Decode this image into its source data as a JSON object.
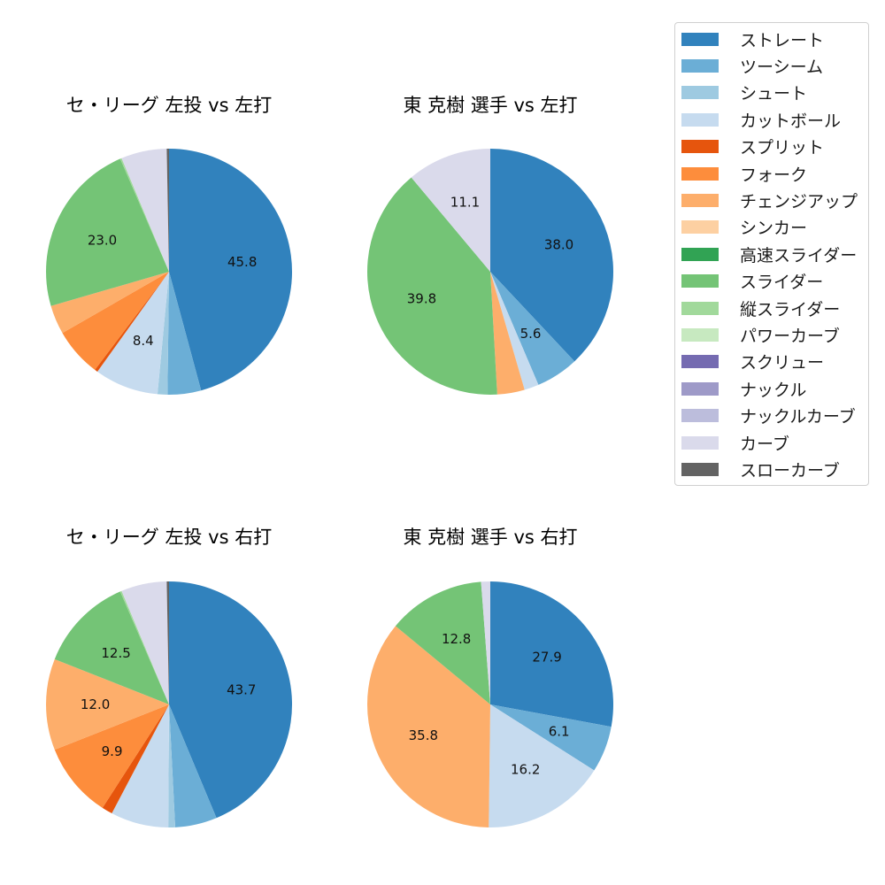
{
  "legend": {
    "items": [
      {
        "label": "ストレート",
        "color": "#3182bd"
      },
      {
        "label": "ツーシーム",
        "color": "#6baed6"
      },
      {
        "label": "シュート",
        "color": "#9ecae1"
      },
      {
        "label": "カットボール",
        "color": "#c6dbef"
      },
      {
        "label": "スプリット",
        "color": "#e6550d"
      },
      {
        "label": "フォーク",
        "color": "#fd8d3c"
      },
      {
        "label": "チェンジアップ",
        "color": "#fdae6b"
      },
      {
        "label": "シンカー",
        "color": "#fdd0a2"
      },
      {
        "label": "高速スライダー",
        "color": "#31a354"
      },
      {
        "label": "スライダー",
        "color": "#74c476"
      },
      {
        "label": "縦スライダー",
        "color": "#a1d99b"
      },
      {
        "label": "パワーカーブ",
        "color": "#c7e9c0"
      },
      {
        "label": "スクリュー",
        "color": "#756bb1"
      },
      {
        "label": "ナックル",
        "color": "#9e9ac8"
      },
      {
        "label": "ナックルカーブ",
        "color": "#bcbddc"
      },
      {
        "label": "カーブ",
        "color": "#dadaeb"
      },
      {
        "label": "スローカーブ",
        "color": "#636363"
      }
    ]
  },
  "chart_data": [
    {
      "type": "pie",
      "title": "セ・リーグ 左投 vs 左打",
      "start_angle": 90,
      "direction": "clockwise",
      "slices": [
        {
          "label": "ストレート",
          "value": 45.8,
          "shown": "45.8"
        },
        {
          "label": "ツーシーム",
          "value": 4.4,
          "shown": ""
        },
        {
          "label": "シュート",
          "value": 1.3,
          "shown": ""
        },
        {
          "label": "カットボール",
          "value": 8.4,
          "shown": "8.4"
        },
        {
          "label": "スプリット",
          "value": 0.4,
          "shown": ""
        },
        {
          "label": "フォーク",
          "value": 6.4,
          "shown": ""
        },
        {
          "label": "チェンジアップ",
          "value": 3.8,
          "shown": ""
        },
        {
          "label": "スライダー",
          "value": 23.0,
          "shown": "23.0"
        },
        {
          "label": "縦スライダー",
          "value": 0.2,
          "shown": ""
        },
        {
          "label": "カーブ",
          "value": 6.0,
          "shown": ""
        },
        {
          "label": "スローカーブ",
          "value": 0.3,
          "shown": ""
        }
      ]
    },
    {
      "type": "pie",
      "title": "東 克樹 選手 vs 左打",
      "start_angle": 90,
      "direction": "clockwise",
      "slices": [
        {
          "label": "ストレート",
          "value": 38.0,
          "shown": "38.0"
        },
        {
          "label": "ツーシーム",
          "value": 5.6,
          "shown": "5.6"
        },
        {
          "label": "カットボール",
          "value": 1.9,
          "shown": ""
        },
        {
          "label": "チェンジアップ",
          "value": 3.6,
          "shown": ""
        },
        {
          "label": "スライダー",
          "value": 39.8,
          "shown": "39.8"
        },
        {
          "label": "カーブ",
          "value": 11.1,
          "shown": "11.1"
        }
      ]
    },
    {
      "type": "pie",
      "title": "セ・リーグ 左投 vs 右打",
      "start_angle": 90,
      "direction": "clockwise",
      "slices": [
        {
          "label": "ストレート",
          "value": 43.7,
          "shown": "43.7"
        },
        {
          "label": "ツーシーム",
          "value": 5.5,
          "shown": ""
        },
        {
          "label": "シュート",
          "value": 0.9,
          "shown": ""
        },
        {
          "label": "カットボール",
          "value": 7.6,
          "shown": ""
        },
        {
          "label": "スプリット",
          "value": 1.4,
          "shown": ""
        },
        {
          "label": "フォーク",
          "value": 9.9,
          "shown": "9.9"
        },
        {
          "label": "チェンジアップ",
          "value": 12.0,
          "shown": "12.0"
        },
        {
          "label": "スライダー",
          "value": 12.5,
          "shown": "12.5"
        },
        {
          "label": "縦スライダー",
          "value": 0.2,
          "shown": ""
        },
        {
          "label": "カーブ",
          "value": 6.0,
          "shown": ""
        },
        {
          "label": "スローカーブ",
          "value": 0.3,
          "shown": ""
        }
      ]
    },
    {
      "type": "pie",
      "title": "東 克樹 選手 vs 右打",
      "start_angle": 90,
      "direction": "clockwise",
      "slices": [
        {
          "label": "ストレート",
          "value": 27.9,
          "shown": "27.9"
        },
        {
          "label": "ツーシーム",
          "value": 6.1,
          "shown": "6.1"
        },
        {
          "label": "カットボール",
          "value": 16.2,
          "shown": "16.2"
        },
        {
          "label": "チェンジアップ",
          "value": 35.8,
          "shown": "35.8"
        },
        {
          "label": "スライダー",
          "value": 12.8,
          "shown": "12.8"
        },
        {
          "label": "カーブ",
          "value": 1.2,
          "shown": ""
        }
      ]
    }
  ]
}
